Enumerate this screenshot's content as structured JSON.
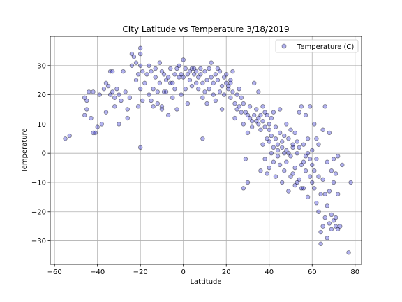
{
  "chart_data": {
    "type": "scatter",
    "title": "CIty Latitude vs Temperature 3/18/2019",
    "xlabel": "Lattitude",
    "ylabel": "Temperature",
    "xlim": [
      -62,
      83
    ],
    "ylim": [
      -38,
      40
    ],
    "x_ticks": [
      -60,
      -40,
      -20,
      0,
      20,
      40,
      60,
      80
    ],
    "y_ticks": [
      -30,
      -20,
      -10,
      0,
      10,
      20,
      30
    ],
    "grid": true,
    "legend_position": "top-right",
    "legend_label": "Temperature (C)",
    "color": "#0000cc",
    "points": [
      [
        -55,
        5
      ],
      [
        -53,
        6
      ],
      [
        -46,
        19
      ],
      [
        -45,
        18
      ],
      [
        -46,
        13
      ],
      [
        -45,
        15
      ],
      [
        -44,
        21
      ],
      [
        -43,
        12
      ],
      [
        -42,
        21
      ],
      [
        -42,
        7
      ],
      [
        -41,
        7
      ],
      [
        -40,
        9
      ],
      [
        -39,
        20
      ],
      [
        -38,
        10
      ],
      [
        -37,
        22
      ],
      [
        -36,
        24
      ],
      [
        -36,
        14
      ],
      [
        -35,
        23
      ],
      [
        -34,
        28
      ],
      [
        -34,
        20
      ],
      [
        -33,
        21
      ],
      [
        -33,
        28
      ],
      [
        -32,
        19
      ],
      [
        -32,
        16
      ],
      [
        -31,
        22
      ],
      [
        -30,
        20
      ],
      [
        -30,
        10
      ],
      [
        -29,
        18
      ],
      [
        -28,
        28
      ],
      [
        -27,
        21
      ],
      [
        -26,
        12
      ],
      [
        -26,
        15
      ],
      [
        -25,
        19
      ],
      [
        -24,
        30
      ],
      [
        -24,
        34
      ],
      [
        -23,
        33
      ],
      [
        -22,
        25
      ],
      [
        -22,
        31
      ],
      [
        -21,
        27
      ],
      [
        -21,
        16
      ],
      [
        -20,
        36
      ],
      [
        -20,
        34
      ],
      [
        -20,
        30
      ],
      [
        -20,
        22
      ],
      [
        -20,
        2
      ],
      [
        -19,
        28
      ],
      [
        -19,
        18
      ],
      [
        -18,
        24
      ],
      [
        -17,
        27
      ],
      [
        -16,
        30
      ],
      [
        -16,
        20
      ],
      [
        -15,
        28
      ],
      [
        -15,
        18
      ],
      [
        -14,
        22
      ],
      [
        -14,
        16
      ],
      [
        -13,
        26
      ],
      [
        -13,
        29
      ],
      [
        -12,
        21
      ],
      [
        -12,
        17
      ],
      [
        -11,
        24
      ],
      [
        -11,
        31
      ],
      [
        -10,
        28
      ],
      [
        -10,
        16
      ],
      [
        -10,
        15
      ],
      [
        -9,
        27
      ],
      [
        -9,
        21
      ],
      [
        -8,
        25
      ],
      [
        -8,
        21
      ],
      [
        -7,
        26
      ],
      [
        -7,
        13
      ],
      [
        -6,
        24
      ],
      [
        -6,
        29
      ],
      [
        -5,
        24
      ],
      [
        -5,
        19
      ],
      [
        -4,
        22
      ],
      [
        -4,
        27
      ],
      [
        -3,
        29
      ],
      [
        -3,
        15
      ],
      [
        -2,
        26
      ],
      [
        -2,
        30
      ],
      [
        -1,
        27
      ],
      [
        -1,
        20
      ],
      [
        0,
        32
      ],
      [
        0,
        26
      ],
      [
        1,
        29
      ],
      [
        1,
        22
      ],
      [
        2,
        27
      ],
      [
        2,
        17
      ],
      [
        3,
        28
      ],
      [
        3,
        25
      ],
      [
        4,
        29
      ],
      [
        4,
        23
      ],
      [
        5,
        29
      ],
      [
        5,
        27
      ],
      [
        6,
        28
      ],
      [
        6,
        24
      ],
      [
        7,
        26
      ],
      [
        7,
        22
      ],
      [
        8,
        29
      ],
      [
        8,
        27
      ],
      [
        9,
        24
      ],
      [
        9,
        19
      ],
      [
        9,
        5
      ],
      [
        10,
        28
      ],
      [
        10,
        21
      ],
      [
        11,
        25
      ],
      [
        11,
        17
      ],
      [
        12,
        29
      ],
      [
        12,
        22
      ],
      [
        13,
        26
      ],
      [
        13,
        31
      ],
      [
        14,
        24
      ],
      [
        14,
        20
      ],
      [
        15,
        27
      ],
      [
        15,
        18
      ],
      [
        16,
        25
      ],
      [
        16,
        29
      ],
      [
        17,
        21
      ],
      [
        17,
        28
      ],
      [
        18,
        23
      ],
      [
        18,
        15
      ],
      [
        19,
        26
      ],
      [
        19,
        20
      ],
      [
        20,
        24
      ],
      [
        20,
        27
      ],
      [
        21,
        22
      ],
      [
        21,
        23
      ],
      [
        22,
        24
      ],
      [
        22,
        25
      ],
      [
        22,
        19
      ],
      [
        23,
        21
      ],
      [
        23,
        28
      ],
      [
        24,
        17
      ],
      [
        24,
        12
      ],
      [
        25,
        20
      ],
      [
        25,
        15
      ],
      [
        26,
        16
      ],
      [
        26,
        22
      ],
      [
        27,
        14
      ],
      [
        27,
        19
      ],
      [
        28,
        17
      ],
      [
        28,
        10
      ],
      [
        28,
        -12
      ],
      [
        29,
        -2
      ],
      [
        29,
        14
      ],
      [
        30,
        13
      ],
      [
        30,
        7
      ],
      [
        30,
        -10
      ],
      [
        31,
        12
      ],
      [
        31,
        16
      ],
      [
        32,
        11
      ],
      [
        32,
        9
      ],
      [
        33,
        13
      ],
      [
        33,
        24
      ],
      [
        34,
        11
      ],
      [
        34,
        15
      ],
      [
        35,
        10
      ],
      [
        35,
        12
      ],
      [
        35,
        21
      ],
      [
        36,
        13
      ],
      [
        36,
        8
      ],
      [
        36,
        -6
      ],
      [
        37,
        16
      ],
      [
        37,
        11
      ],
      [
        37,
        3
      ],
      [
        38,
        14
      ],
      [
        38,
        9
      ],
      [
        38,
        -2
      ],
      [
        39,
        13
      ],
      [
        39,
        5
      ],
      [
        39,
        -7
      ],
      [
        40,
        8
      ],
      [
        40,
        4
      ],
      [
        40,
        10
      ],
      [
        40,
        -5
      ],
      [
        41,
        6
      ],
      [
        41,
        0
      ],
      [
        41,
        12
      ],
      [
        42,
        2
      ],
      [
        42,
        -3
      ],
      [
        42,
        14
      ],
      [
        43,
        5
      ],
      [
        43,
        9
      ],
      [
        43,
        -8
      ],
      [
        44,
        1
      ],
      [
        44,
        3
      ],
      [
        44,
        -1
      ],
      [
        45,
        7
      ],
      [
        45,
        15
      ],
      [
        45,
        -4
      ],
      [
        46,
        4
      ],
      [
        46,
        2
      ],
      [
        46,
        -10
      ],
      [
        47,
        0
      ],
      [
        47,
        6
      ],
      [
        47,
        -6
      ],
      [
        48,
        1
      ],
      [
        48,
        -3
      ],
      [
        48,
        10
      ],
      [
        49,
        5
      ],
      [
        49,
        0
      ],
      [
        49,
        -13
      ],
      [
        50,
        -1
      ],
      [
        50,
        8
      ],
      [
        50,
        -8
      ],
      [
        51,
        3
      ],
      [
        51,
        -7
      ],
      [
        51,
        2
      ],
      [
        52,
        -5
      ],
      [
        52,
        7
      ],
      [
        52,
        -11
      ],
      [
        53,
        0
      ],
      [
        53,
        -10
      ],
      [
        53,
        4
      ],
      [
        54,
        2
      ],
      [
        54,
        -9
      ],
      [
        54,
        14
      ],
      [
        55,
        -12
      ],
      [
        55,
        -4
      ],
      [
        55,
        16
      ],
      [
        56,
        3
      ],
      [
        56,
        -3
      ],
      [
        56,
        -12
      ],
      [
        57,
        -6
      ],
      [
        57,
        -1
      ],
      [
        57,
        13
      ],
      [
        58,
        0
      ],
      [
        58,
        5
      ],
      [
        58,
        -15
      ],
      [
        59,
        -8
      ],
      [
        59,
        -2
      ],
      [
        59,
        16
      ],
      [
        60,
        1
      ],
      [
        60,
        -10
      ],
      [
        60,
        -4
      ],
      [
        61,
        -12
      ],
      [
        61,
        -6
      ],
      [
        61,
        10
      ],
      [
        62,
        -17
      ],
      [
        62,
        -2
      ],
      [
        62,
        5
      ],
      [
        63,
        -20
      ],
      [
        63,
        -8
      ],
      [
        63,
        3
      ],
      [
        64,
        -27
      ],
      [
        64,
        -31
      ],
      [
        64,
        -14
      ],
      [
        65,
        -25
      ],
      [
        65,
        -9
      ],
      [
        65,
        8
      ],
      [
        66,
        -22
      ],
      [
        66,
        -14
      ],
      [
        66,
        16
      ],
      [
        67,
        -29
      ],
      [
        67,
        -18
      ],
      [
        67,
        -3
      ],
      [
        68,
        -24
      ],
      [
        68,
        -13
      ],
      [
        68,
        7
      ],
      [
        69,
        -26
      ],
      [
        69,
        -21
      ],
      [
        69,
        -6
      ],
      [
        70,
        -23
      ],
      [
        70,
        -10
      ],
      [
        70,
        -2
      ],
      [
        71,
        -22
      ],
      [
        71,
        -25
      ],
      [
        71,
        -7
      ],
      [
        72,
        -26
      ],
      [
        72,
        -14
      ],
      [
        72,
        -1
      ],
      [
        73,
        -25
      ],
      [
        74,
        -4
      ],
      [
        77,
        -34
      ],
      [
        78,
        -10
      ]
    ]
  }
}
